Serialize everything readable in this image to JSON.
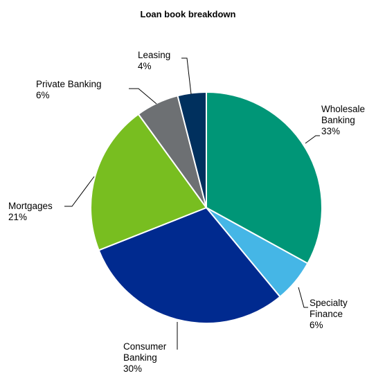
{
  "chart_data": {
    "type": "pie",
    "title": "Loan book breakdown",
    "slices": [
      {
        "label_lines": [
          "Wholesale",
          "Banking"
        ],
        "value_label": "33%",
        "value": 33,
        "color": "#009677"
      },
      {
        "label_lines": [
          "Specialty",
          "Finance"
        ],
        "value_label": "6%",
        "value": 6,
        "color": "#45b6e6"
      },
      {
        "label_lines": [
          "Consumer",
          "Banking"
        ],
        "value_label": "30%",
        "value": 30,
        "color": "#002a8f"
      },
      {
        "label_lines": [
          "Mortgages"
        ],
        "value_label": "21%",
        "value": 21,
        "color": "#78be20"
      },
      {
        "label_lines": [
          "Private Banking"
        ],
        "value_label": "6%",
        "value": 6,
        "color": "#6d7073"
      },
      {
        "label_lines": [
          "Leasing"
        ],
        "value_label": "4%",
        "value": 4,
        "color": "#00305e"
      }
    ]
  }
}
